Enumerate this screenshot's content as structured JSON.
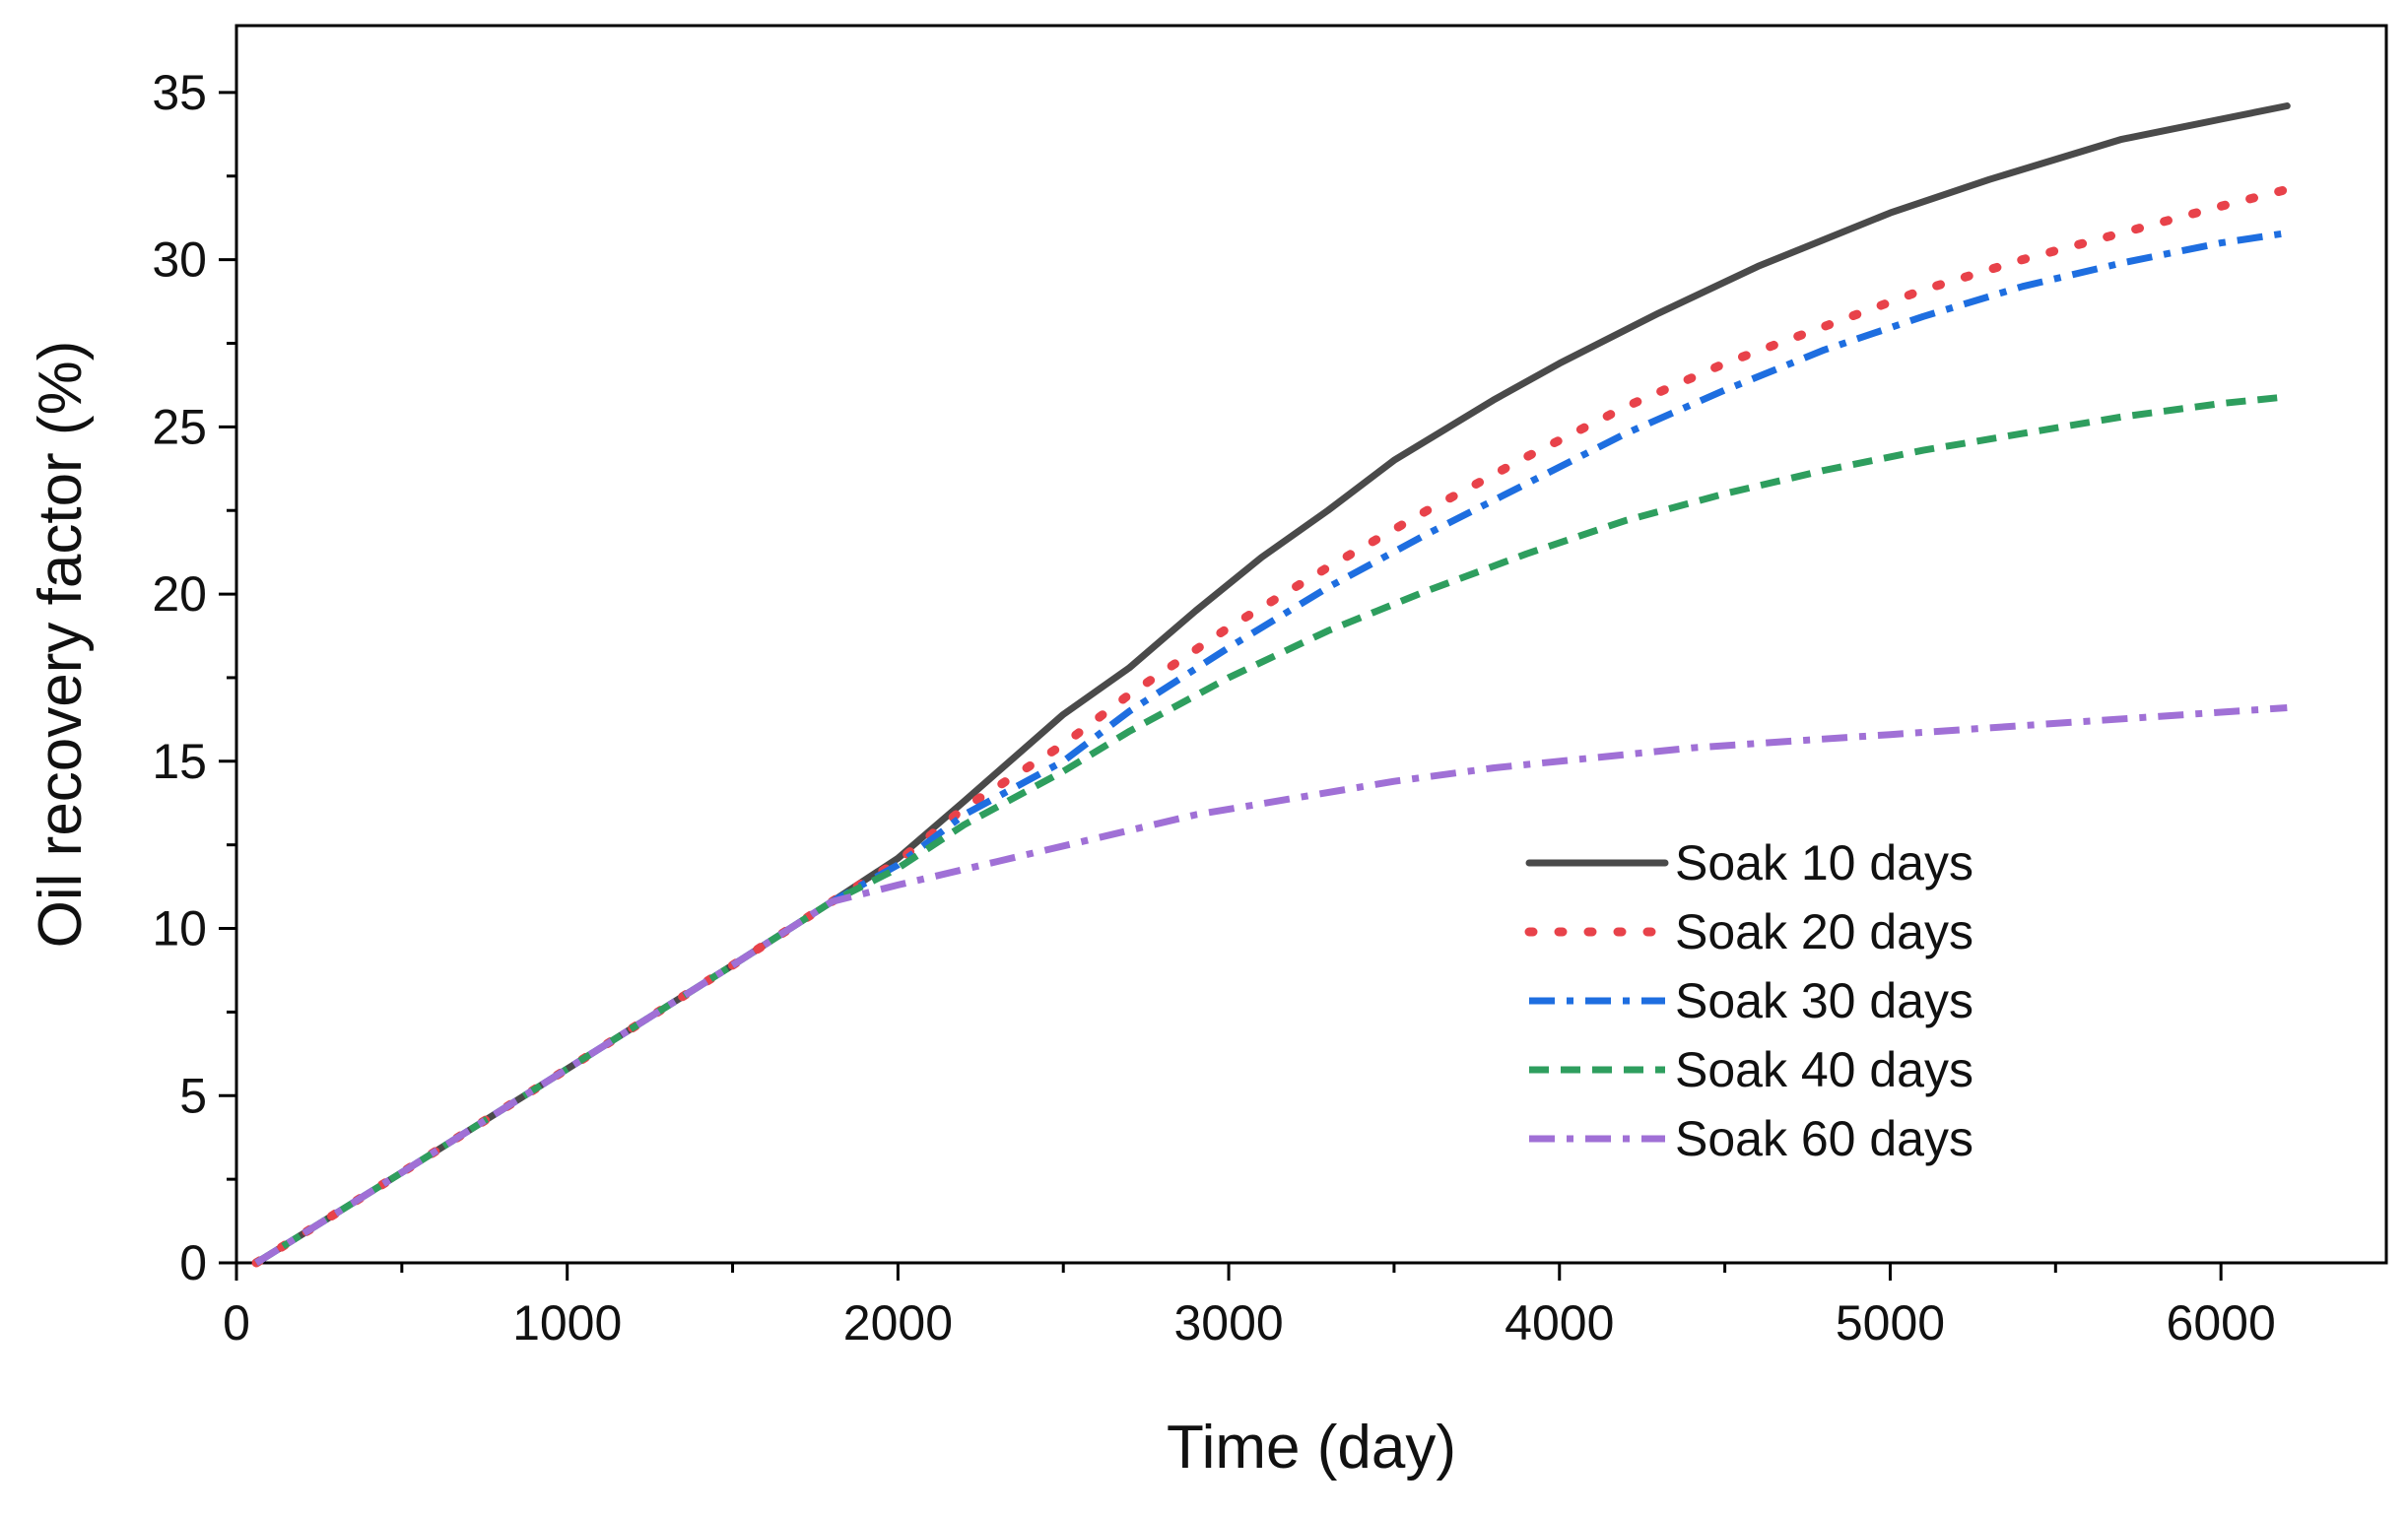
{
  "chart_data": {
    "type": "line",
    "title": "",
    "xlabel": "Time (day)",
    "ylabel": "Oil recovery factor (%)",
    "xlim": [
      0,
      6500
    ],
    "ylim": [
      0,
      37
    ],
    "x_ticks": [
      0,
      1000,
      2000,
      3000,
      4000,
      5000,
      6000
    ],
    "y_ticks": [
      0,
      5,
      10,
      15,
      20,
      25,
      30,
      35
    ],
    "legend_position": "center-right",
    "grid": false,
    "series": [
      {
        "name": "Soak 10 days",
        "color": "#4a4a4a",
        "style": "solid",
        "x": [
          60,
          500,
          1000,
          1500,
          1800,
          2000,
          2200,
          2500,
          2700,
          2900,
          3100,
          3300,
          3500,
          3800,
          4000,
          4300,
          4600,
          5000,
          5300,
          5700,
          6000,
          6200
        ],
        "y": [
          0,
          2.7,
          5.8,
          8.9,
          10.8,
          12.1,
          13.8,
          16.4,
          17.8,
          19.5,
          21.1,
          22.5,
          24.0,
          25.8,
          26.9,
          28.4,
          29.8,
          31.4,
          32.4,
          33.6,
          34.2,
          34.6
        ]
      },
      {
        "name": "Soak 20 days",
        "color": "#e8424a",
        "style": "dotted",
        "x": [
          60,
          500,
          1000,
          1500,
          1800,
          2000,
          2200,
          2500,
          2700,
          3000,
          3300,
          3600,
          3900,
          4200,
          4500,
          4800,
          5100,
          5400,
          5700,
          6000,
          6200
        ],
        "y": [
          0,
          2.7,
          5.8,
          8.9,
          10.8,
          12.0,
          13.6,
          15.5,
          17.0,
          19.0,
          20.8,
          22.5,
          24.1,
          25.6,
          26.9,
          28.0,
          29.1,
          30.0,
          30.8,
          31.6,
          32.1
        ]
      },
      {
        "name": "Soak 30 days",
        "color": "#1e6ee0",
        "style": "dash-dot",
        "x": [
          60,
          500,
          1000,
          1500,
          1800,
          2000,
          2200,
          2500,
          2700,
          3000,
          3300,
          3600,
          3900,
          4200,
          4500,
          4800,
          5100,
          5400,
          5700,
          6000,
          6200
        ],
        "y": [
          0,
          2.7,
          5.8,
          8.9,
          10.8,
          11.9,
          13.4,
          15.0,
          16.5,
          18.4,
          20.2,
          21.8,
          23.3,
          24.8,
          26.1,
          27.3,
          28.3,
          29.2,
          29.9,
          30.5,
          30.8
        ]
      },
      {
        "name": "Soak 40 days",
        "color": "#2e9e5e",
        "style": "dashed",
        "x": [
          60,
          500,
          1000,
          1500,
          1800,
          2000,
          2200,
          2500,
          2700,
          3000,
          3300,
          3600,
          3900,
          4200,
          4500,
          4800,
          5100,
          5400,
          5700,
          6000,
          6200
        ],
        "y": [
          0,
          2.7,
          5.8,
          8.9,
          10.8,
          11.8,
          13.1,
          14.7,
          15.9,
          17.5,
          18.9,
          20.1,
          21.2,
          22.2,
          23.0,
          23.7,
          24.3,
          24.8,
          25.3,
          25.7,
          25.9
        ]
      },
      {
        "name": "Soak 60 days",
        "color": "#a070d6",
        "style": "dash-dot",
        "x": [
          60,
          500,
          1000,
          1500,
          1800,
          2000,
          2300,
          2600,
          2900,
          3200,
          3500,
          3800,
          4100,
          4400,
          4700,
          5000,
          5300,
          5600,
          5900,
          6200
        ],
        "y": [
          0,
          2.7,
          5.8,
          8.9,
          10.8,
          11.3,
          12.0,
          12.7,
          13.4,
          13.9,
          14.4,
          14.8,
          15.1,
          15.4,
          15.6,
          15.8,
          16.0,
          16.2,
          16.4,
          16.6
        ]
      }
    ]
  }
}
